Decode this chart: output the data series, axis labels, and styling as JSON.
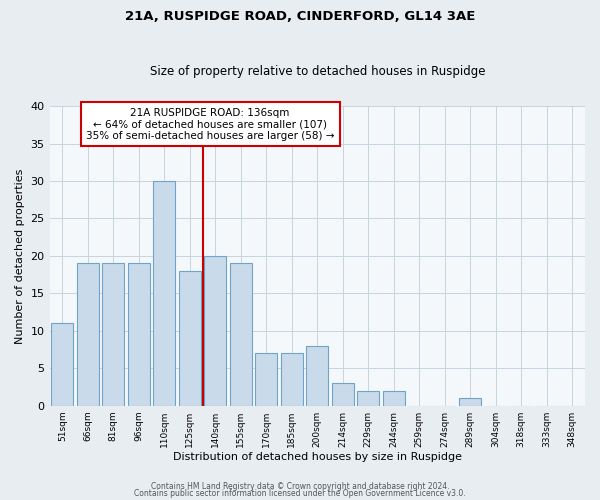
{
  "title": "21A, RUSPIDGE ROAD, CINDERFORD, GL14 3AE",
  "subtitle": "Size of property relative to detached houses in Ruspidge",
  "xlabel": "Distribution of detached houses by size in Ruspidge",
  "ylabel": "Number of detached properties",
  "bar_labels": [
    "51sqm",
    "66sqm",
    "81sqm",
    "96sqm",
    "110sqm",
    "125sqm",
    "140sqm",
    "155sqm",
    "170sqm",
    "185sqm",
    "200sqm",
    "214sqm",
    "229sqm",
    "244sqm",
    "259sqm",
    "274sqm",
    "289sqm",
    "304sqm",
    "318sqm",
    "333sqm",
    "348sqm"
  ],
  "bar_heights": [
    11,
    19,
    19,
    19,
    30,
    18,
    20,
    19,
    7,
    7,
    8,
    3,
    2,
    2,
    0,
    0,
    1,
    0,
    0,
    0,
    0
  ],
  "bar_color": "#c9daea",
  "bar_edge_color": "#6ea4c8",
  "ylim": [
    0,
    40
  ],
  "yticks": [
    0,
    5,
    10,
    15,
    20,
    25,
    30,
    35,
    40
  ],
  "vline_color": "#cc0000",
  "vline_x": 5.5,
  "annotation_title": "21A RUSPIDGE ROAD: 136sqm",
  "annotation_line1": "← 64% of detached houses are smaller (107)",
  "annotation_line2": "35% of semi-detached houses are larger (58) →",
  "annotation_box_edge": "#cc0000",
  "footer_line1": "Contains HM Land Registry data © Crown copyright and database right 2024.",
  "footer_line2": "Contains public sector information licensed under the Open Government Licence v3.0.",
  "bg_color": "#e8edf2",
  "plot_bg_color": "#f5f8fb",
  "grid_color": "#c8d4de"
}
